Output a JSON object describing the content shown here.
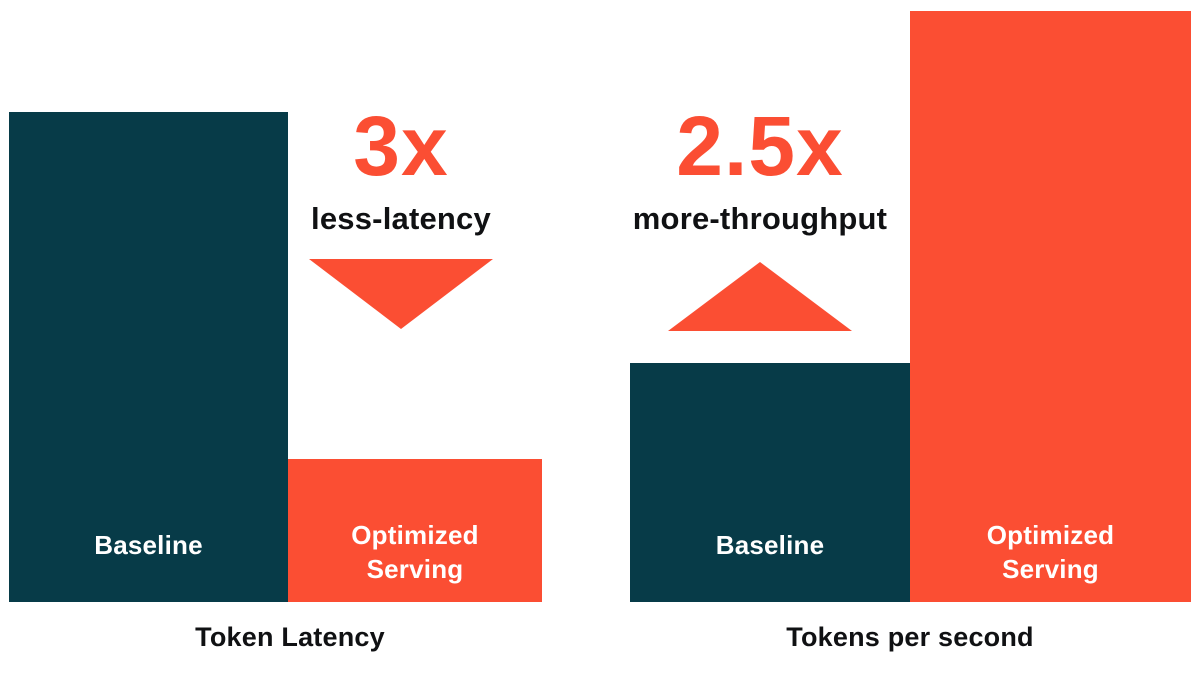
{
  "colors": {
    "teal": "#073B48",
    "orange": "#FB4E33",
    "text": "#101113",
    "bar_label_text": "#FFFFFF",
    "background": "#FFFFFF"
  },
  "charts": [
    {
      "caption": "Token Latency",
      "multiplier": "3x",
      "multiplier_label": "less-latency",
      "trend_icon": "triangle-down",
      "bars": [
        {
          "label": "Baseline",
          "color_key": "teal"
        },
        {
          "label": "Optimized Serving",
          "color_key": "orange"
        }
      ]
    },
    {
      "caption": "Tokens per second",
      "multiplier": "2.5x",
      "multiplier_label": "more-throughput",
      "trend_icon": "triangle-up",
      "bars": [
        {
          "label": "Baseline",
          "color_key": "teal"
        },
        {
          "label": "Optimized Serving",
          "color_key": "orange"
        }
      ]
    }
  ],
  "chart_data": [
    {
      "type": "bar",
      "title": "Token Latency",
      "categories": [
        "Baseline",
        "Optimized Serving"
      ],
      "values": [
        3,
        1
      ],
      "value_unit": "relative latency (Optimized Serving normalized to 1)",
      "annotation": "3x less-latency",
      "annotation_direction": "down",
      "series_colors": [
        "#073B48",
        "#FB4E33"
      ],
      "xlabel": "",
      "ylabel": "",
      "axes": "none (pictorial comparison, no gridlines or tick labels)",
      "legend": "labels printed inside bars"
    },
    {
      "type": "bar",
      "title": "Tokens per second",
      "categories": [
        "Baseline",
        "Optimized Serving"
      ],
      "values": [
        1,
        2.5
      ],
      "value_unit": "relative throughput (Baseline normalized to 1)",
      "annotation": "2.5x more-throughput",
      "annotation_direction": "up",
      "series_colors": [
        "#073B48",
        "#FB4E33"
      ],
      "xlabel": "",
      "ylabel": "",
      "axes": "none (pictorial comparison, no gridlines or tick labels)",
      "legend": "labels printed inside bars"
    }
  ]
}
